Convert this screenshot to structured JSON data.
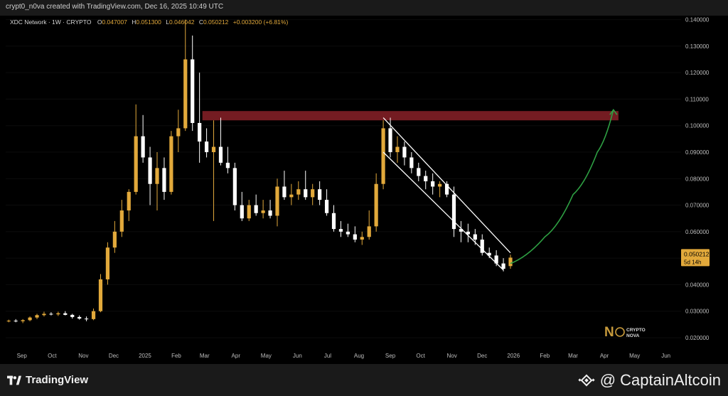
{
  "header": {
    "attribution": "crypt0_n0va created with TradingView.com, Dec 16, 2025 10:49 UTC"
  },
  "legend": {
    "symbol": "XDC Network · 1W · CRYPTO",
    "o_label": "O",
    "o_value": "0.047007",
    "h_label": "H",
    "h_value": "0.051300",
    "l_label": "L",
    "l_value": "0.046042",
    "c_label": "C",
    "c_value": "0.050212",
    "change": "+0.003200 (+6.81%)"
  },
  "price_tag": {
    "price": "0.050212",
    "countdown": "5d 14h"
  },
  "watermark": {
    "line1": "CRYPTO",
    "line2": "NOVA"
  },
  "footer": {
    "left_logo": "TradingView",
    "right_logo": "@ CaptainAltcoin"
  },
  "colors": {
    "up": "#e2a93b",
    "down": "#ffffff",
    "resistance": "#7a1e24",
    "channel": "#ffffff",
    "projection": "#2ea043",
    "tag": "#e2a93b"
  },
  "chart_data": {
    "type": "candlestick",
    "ylim": [
      0.017,
      0.141
    ],
    "y_ticks": [
      "0.140000",
      "0.130000",
      "0.120000",
      "0.110000",
      "0.100000",
      "0.090000",
      "0.080000",
      "0.070000",
      "0.060000",
      "0.050000",
      "0.040000",
      "0.030000",
      "0.020000"
    ],
    "y_tick_values": [
      0.14,
      0.13,
      0.12,
      0.11,
      0.1,
      0.09,
      0.08,
      0.07,
      0.06,
      0.05,
      0.04,
      0.03,
      0.02
    ],
    "x_ticks": [
      {
        "label": "Sep",
        "date": "2024-09-01"
      },
      {
        "label": "Oct",
        "date": "2024-10-01"
      },
      {
        "label": "Nov",
        "date": "2024-11-01"
      },
      {
        "label": "Dec",
        "date": "2024-12-01"
      },
      {
        "label": "2025",
        "date": "2025-01-01"
      },
      {
        "label": "Feb",
        "date": "2025-02-01"
      },
      {
        "label": "Mar",
        "date": "2025-03-01"
      },
      {
        "label": "Apr",
        "date": "2025-04-01"
      },
      {
        "label": "May",
        "date": "2025-05-01"
      },
      {
        "label": "Jun",
        "date": "2025-06-01"
      },
      {
        "label": "Jul",
        "date": "2025-07-01"
      },
      {
        "label": "Aug",
        "date": "2025-08-01"
      },
      {
        "label": "Sep",
        "date": "2025-09-01"
      },
      {
        "label": "Oct",
        "date": "2025-10-01"
      },
      {
        "label": "Nov",
        "date": "2025-11-01"
      },
      {
        "label": "Dec",
        "date": "2025-12-01"
      },
      {
        "label": "2026",
        "date": "2026-01-01"
      },
      {
        "label": "Feb",
        "date": "2026-02-01"
      },
      {
        "label": "Mar",
        "date": "2026-03-01"
      },
      {
        "label": "Apr",
        "date": "2026-04-01"
      },
      {
        "label": "May",
        "date": "2026-05-01"
      },
      {
        "label": "Jun",
        "date": "2026-06-01"
      }
    ],
    "candles": [
      [
        "2024-08-19",
        0.0262,
        0.0268,
        0.0258,
        0.0264
      ],
      [
        "2024-08-26",
        0.0264,
        0.027,
        0.0258,
        0.0262
      ],
      [
        "2024-09-02",
        0.0262,
        0.027,
        0.0255,
        0.0266
      ],
      [
        "2024-09-09",
        0.0266,
        0.028,
        0.0262,
        0.0276
      ],
      [
        "2024-09-16",
        0.0276,
        0.029,
        0.027,
        0.0285
      ],
      [
        "2024-09-23",
        0.0285,
        0.0298,
        0.028,
        0.029
      ],
      [
        "2024-09-30",
        0.029,
        0.0296,
        0.0284,
        0.0288
      ],
      [
        "2024-10-07",
        0.0288,
        0.0298,
        0.0282,
        0.0292
      ],
      [
        "2024-10-14",
        0.0292,
        0.03,
        0.0284,
        0.0286
      ],
      [
        "2024-10-21",
        0.0286,
        0.029,
        0.0272,
        0.0278
      ],
      [
        "2024-10-28",
        0.0278,
        0.0284,
        0.0268,
        0.0272
      ],
      [
        "2024-11-04",
        0.0272,
        0.028,
        0.0262,
        0.027
      ],
      [
        "2024-11-11",
        0.027,
        0.031,
        0.0266,
        0.03
      ],
      [
        "2024-11-18",
        0.03,
        0.044,
        0.0296,
        0.042
      ],
      [
        "2024-11-25",
        0.042,
        0.056,
        0.04,
        0.054
      ],
      [
        "2024-12-02",
        0.054,
        0.064,
        0.052,
        0.06
      ],
      [
        "2024-12-09",
        0.06,
        0.072,
        0.058,
        0.068
      ],
      [
        "2024-12-16",
        0.068,
        0.076,
        0.064,
        0.075
      ],
      [
        "2024-12-23",
        0.075,
        0.108,
        0.074,
        0.096
      ],
      [
        "2024-12-30",
        0.096,
        0.104,
        0.086,
        0.088
      ],
      [
        "2025-01-06",
        0.088,
        0.092,
        0.07,
        0.078
      ],
      [
        "2025-01-13",
        0.078,
        0.09,
        0.068,
        0.084
      ],
      [
        "2025-01-20",
        0.084,
        0.088,
        0.072,
        0.075
      ],
      [
        "2025-01-27",
        0.075,
        0.098,
        0.074,
        0.096
      ],
      [
        "2025-02-03",
        0.096,
        0.106,
        0.09,
        0.099
      ],
      [
        "2025-02-10",
        0.099,
        0.14,
        0.098,
        0.125
      ],
      [
        "2025-02-17",
        0.125,
        0.134,
        0.098,
        0.101
      ],
      [
        "2025-02-24",
        0.101,
        0.12,
        0.086,
        0.094
      ],
      [
        "2025-03-03",
        0.094,
        0.099,
        0.088,
        0.09
      ],
      [
        "2025-03-10",
        0.09,
        0.102,
        0.064,
        0.092
      ],
      [
        "2025-03-17",
        0.092,
        0.103,
        0.085,
        0.086
      ],
      [
        "2025-03-24",
        0.086,
        0.092,
        0.082,
        0.084
      ],
      [
        "2025-03-31",
        0.084,
        0.086,
        0.068,
        0.07
      ],
      [
        "2025-04-07",
        0.07,
        0.075,
        0.064,
        0.065
      ],
      [
        "2025-04-14",
        0.065,
        0.072,
        0.064,
        0.07
      ],
      [
        "2025-04-21",
        0.07,
        0.074,
        0.066,
        0.067
      ],
      [
        "2025-04-28",
        0.067,
        0.072,
        0.065,
        0.068
      ],
      [
        "2025-05-05",
        0.068,
        0.072,
        0.065,
        0.066
      ],
      [
        "2025-05-12",
        0.066,
        0.08,
        0.062,
        0.077
      ],
      [
        "2025-05-19",
        0.077,
        0.083,
        0.072,
        0.073
      ],
      [
        "2025-05-26",
        0.073,
        0.078,
        0.07,
        0.074
      ],
      [
        "2025-06-02",
        0.074,
        0.079,
        0.072,
        0.076
      ],
      [
        "2025-06-09",
        0.076,
        0.083,
        0.072,
        0.073
      ],
      [
        "2025-06-16",
        0.073,
        0.078,
        0.07,
        0.076
      ],
      [
        "2025-06-23",
        0.076,
        0.079,
        0.07,
        0.072
      ],
      [
        "2025-06-30",
        0.072,
        0.076,
        0.066,
        0.067
      ],
      [
        "2025-07-07",
        0.067,
        0.07,
        0.06,
        0.061
      ],
      [
        "2025-07-14",
        0.061,
        0.064,
        0.058,
        0.06
      ],
      [
        "2025-07-21",
        0.06,
        0.063,
        0.058,
        0.059
      ],
      [
        "2025-07-28",
        0.059,
        0.062,
        0.056,
        0.057
      ],
      [
        "2025-08-04",
        0.057,
        0.06,
        0.055,
        0.058
      ],
      [
        "2025-08-11",
        0.058,
        0.068,
        0.057,
        0.062
      ],
      [
        "2025-08-18",
        0.062,
        0.082,
        0.06,
        0.078
      ],
      [
        "2025-08-25",
        0.078,
        0.102,
        0.076,
        0.099
      ],
      [
        "2025-09-01",
        0.099,
        0.103,
        0.088,
        0.09
      ],
      [
        "2025-09-08",
        0.09,
        0.096,
        0.086,
        0.092
      ],
      [
        "2025-09-15",
        0.092,
        0.094,
        0.085,
        0.088
      ],
      [
        "2025-09-22",
        0.088,
        0.09,
        0.082,
        0.084
      ],
      [
        "2025-09-29",
        0.084,
        0.086,
        0.079,
        0.081
      ],
      [
        "2025-10-06",
        0.081,
        0.083,
        0.076,
        0.079
      ],
      [
        "2025-10-13",
        0.079,
        0.082,
        0.074,
        0.077
      ],
      [
        "2025-10-20",
        0.077,
        0.079,
        0.073,
        0.078
      ],
      [
        "2025-10-27",
        0.078,
        0.079,
        0.073,
        0.074
      ],
      [
        "2025-11-03",
        0.074,
        0.077,
        0.058,
        0.061
      ],
      [
        "2025-11-10",
        0.061,
        0.064,
        0.056,
        0.06
      ],
      [
        "2025-11-17",
        0.06,
        0.063,
        0.056,
        0.059
      ],
      [
        "2025-11-24",
        0.059,
        0.061,
        0.055,
        0.057
      ],
      [
        "2025-12-01",
        0.057,
        0.059,
        0.051,
        0.052
      ],
      [
        "2025-12-08",
        0.052,
        0.054,
        0.05,
        0.051
      ],
      [
        "2025-12-15",
        0.051,
        0.053,
        0.047,
        0.048
      ],
      [
        "2025-12-22",
        0.048,
        0.05,
        0.045,
        0.046
      ],
      [
        "2025-12-29",
        0.047,
        0.0513,
        0.046,
        0.0502
      ]
    ],
    "resistance_zone": {
      "x_start": "2025-02-17",
      "x_end": "2026-04-15",
      "y_low": 0.102,
      "y_high": 0.1055
    },
    "channel_upper": [
      [
        "2025-08-25",
        0.103
      ],
      [
        "2025-12-29",
        0.052
      ]
    ],
    "channel_lower": [
      [
        "2025-08-25",
        0.09
      ],
      [
        "2025-12-22",
        0.0455
      ]
    ],
    "projection_curve": [
      [
        "2025-12-29",
        0.048
      ],
      [
        "2026-02-01",
        0.058
      ],
      [
        "2026-03-01",
        0.074
      ],
      [
        "2026-03-25",
        0.09
      ],
      [
        "2026-04-10",
        0.106
      ]
    ]
  }
}
